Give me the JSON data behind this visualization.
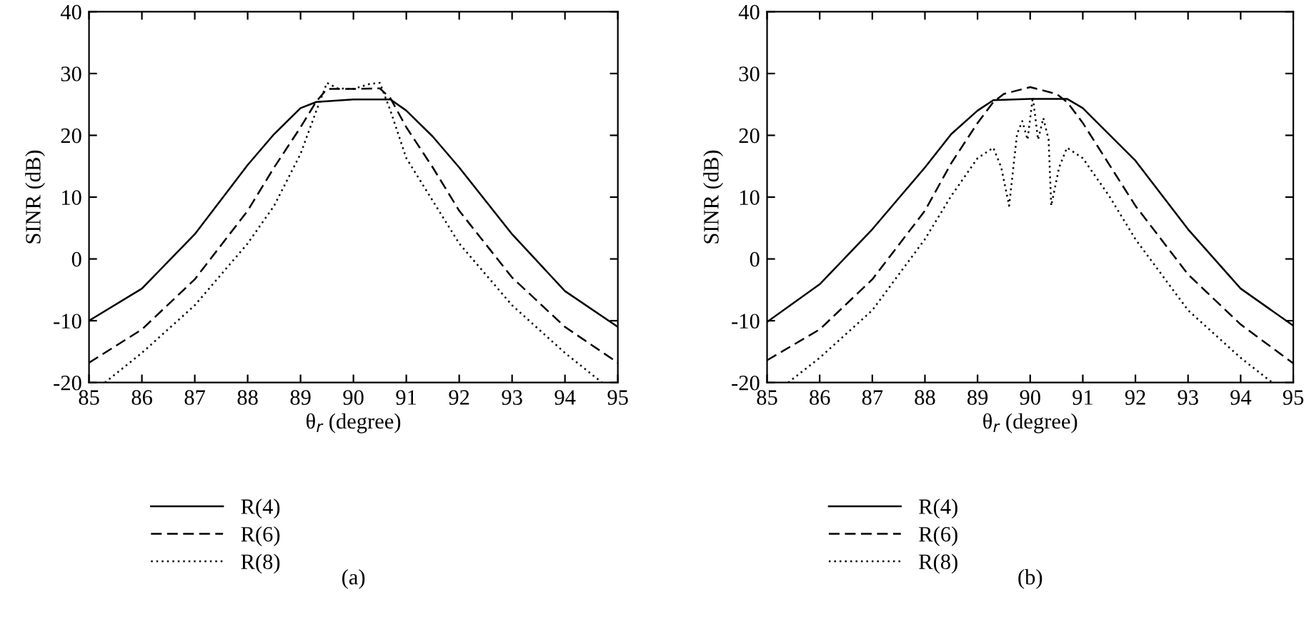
{
  "chart_data": [
    {
      "type": "line",
      "xlabel": "θ$_{r}$ (degree)",
      "ylabel": "SINR (dB)",
      "xlim": [
        85,
        95
      ],
      "ylim": [
        -20,
        40
      ],
      "xticks": [
        85,
        86,
        87,
        88,
        89,
        90,
        91,
        92,
        93,
        94,
        95
      ],
      "yticks": [
        -20,
        -10,
        0,
        10,
        20,
        30,
        40
      ],
      "grid": false,
      "legend": "bottom left",
      "annotations": [
        "(a)"
      ],
      "series": [
        {
          "name": "R(4)",
          "color": "#000000",
          "line_style": "solid",
          "x": [
            85,
            86,
            87,
            88,
            88.5,
            89,
            89.3,
            90,
            90.7,
            91,
            91.5,
            92,
            93,
            94,
            95
          ],
          "values": [
            -10,
            -4.8,
            4,
            15.2,
            20.2,
            24.4,
            25.4,
            25.8,
            25.8,
            24,
            19.8,
            14.8,
            4,
            -5.2,
            -11
          ]
        },
        {
          "name": "R(6)",
          "color": "#000000",
          "line_style": "dashed",
          "x": [
            85,
            86,
            87,
            88,
            88.5,
            89,
            89.3,
            89.5,
            90,
            90.5,
            90.7,
            91,
            91.5,
            92,
            93,
            94,
            95
          ],
          "values": [
            -16.8,
            -11.4,
            -3.3,
            7.8,
            14.8,
            21.3,
            25.5,
            27.5,
            27.5,
            27.6,
            26,
            21.3,
            14.8,
            7.8,
            -3,
            -11,
            -16.8
          ]
        },
        {
          "name": "R(8)",
          "color": "#000000",
          "line_style": "dotted",
          "x": [
            85.3,
            86,
            87,
            88,
            88.5,
            89,
            89.3,
            89.5,
            89.7,
            90,
            90.3,
            90.5,
            90.7,
            91,
            92,
            93,
            94,
            94.7
          ],
          "values": [
            -20,
            -15.2,
            -7.5,
            2.5,
            8.6,
            17,
            24,
            28.5,
            27.6,
            27.5,
            28.3,
            28.5,
            24,
            16.3,
            2.5,
            -7.5,
            -15.2,
            -20
          ]
        }
      ]
    },
    {
      "type": "line",
      "xlabel": "θ$_{r}$ (degree)",
      "ylabel": "SINR (dB)",
      "xlim": [
        85,
        95
      ],
      "ylim": [
        -20,
        40
      ],
      "xticks": [
        85,
        86,
        87,
        88,
        89,
        90,
        91,
        92,
        93,
        94,
        95
      ],
      "yticks": [
        -20,
        -10,
        0,
        10,
        20,
        30,
        40
      ],
      "grid": false,
      "legend": "bottom left",
      "annotations": [
        "(b)"
      ],
      "series": [
        {
          "name": "R(4)",
          "color": "#000000",
          "line_style": "solid",
          "x": [
            85,
            86,
            87,
            88,
            88.5,
            89,
            89.3,
            90,
            90.7,
            91,
            92,
            93,
            94,
            95
          ],
          "values": [
            -10.2,
            -4.1,
            4.8,
            14.8,
            20.2,
            24,
            25.7,
            25.9,
            25.9,
            24.4,
            15.9,
            4.8,
            -4.8,
            -10.8
          ]
        },
        {
          "name": "R(6)",
          "color": "#000000",
          "line_style": "dashed",
          "x": [
            85,
            86,
            87,
            88,
            88.5,
            89,
            89.3,
            89.5,
            90,
            90.5,
            90.7,
            91,
            92,
            93,
            94,
            95
          ],
          "values": [
            -16.4,
            -11.4,
            -3.3,
            7.8,
            15.5,
            22,
            25.4,
            26.7,
            27.8,
            26.7,
            25.4,
            22,
            8.6,
            -2.5,
            -10.6,
            -16.9
          ]
        },
        {
          "name": "R(8)",
          "color": "#000000",
          "line_style": "dotted",
          "x": [
            85.4,
            86,
            87,
            88,
            88.5,
            89,
            89.3,
            89.45,
            89.6,
            89.75,
            89.85,
            89.95,
            90.05,
            90.15,
            90.25,
            90.35,
            90.4,
            90.55,
            90.7,
            91,
            91.5,
            92,
            93,
            94,
            94.6
          ],
          "values": [
            -20,
            -16,
            -8.3,
            3.2,
            10.2,
            16.3,
            18,
            14.8,
            8.6,
            20.2,
            22.3,
            19.3,
            26.2,
            19.3,
            22.8,
            19.3,
            8.6,
            14.8,
            18,
            16.3,
            10.2,
            3.2,
            -8.3,
            -16,
            -20
          ]
        }
      ]
    }
  ]
}
